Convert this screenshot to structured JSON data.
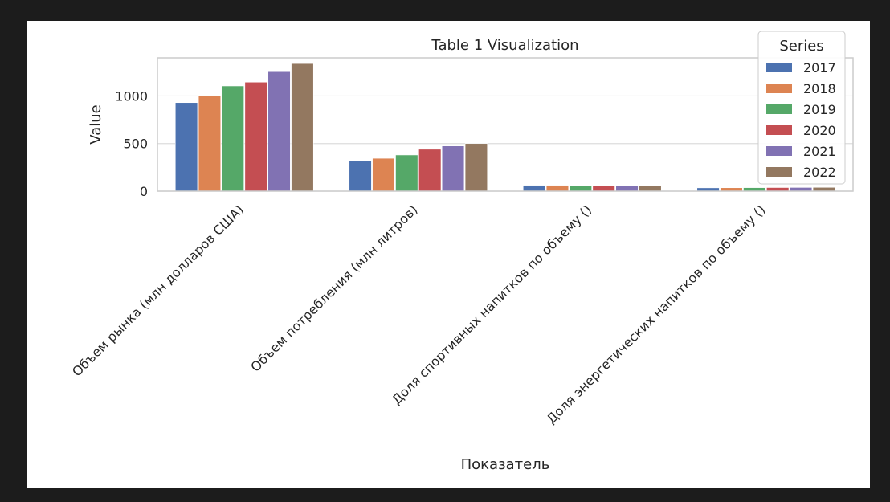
{
  "chart_data": {
    "type": "bar",
    "title": "Table 1 Visualization",
    "xlabel": "Показатель",
    "ylabel": "Value",
    "ylim": [
      0,
      1400
    ],
    "yticks": [
      0,
      500,
      1000
    ],
    "grid": true,
    "legend_title": "Series",
    "legend_position": "top-right",
    "categories": [
      "Объем рынка (млн долларов США)",
      "Объем потребления (млн литров)",
      "Доля спортивных напитков по объему ()",
      "Доля энергетических напитков по объему ()"
    ],
    "series": [
      {
        "name": "2017",
        "color": "#4c72b0",
        "values": [
          930,
          320,
          62,
          35
        ]
      },
      {
        "name": "2018",
        "color": "#dd8452",
        "values": [
          1005,
          345,
          62,
          36
        ]
      },
      {
        "name": "2019",
        "color": "#55a868",
        "values": [
          1105,
          380,
          61,
          37
        ]
      },
      {
        "name": "2020",
        "color": "#c44e52",
        "values": [
          1145,
          440,
          59,
          38
        ]
      },
      {
        "name": "2021",
        "color": "#8172b3",
        "values": [
          1255,
          475,
          58,
          39
        ]
      },
      {
        "name": "2022",
        "color": "#937860",
        "values": [
          1340,
          500,
          57,
          40
        ]
      }
    ]
  }
}
